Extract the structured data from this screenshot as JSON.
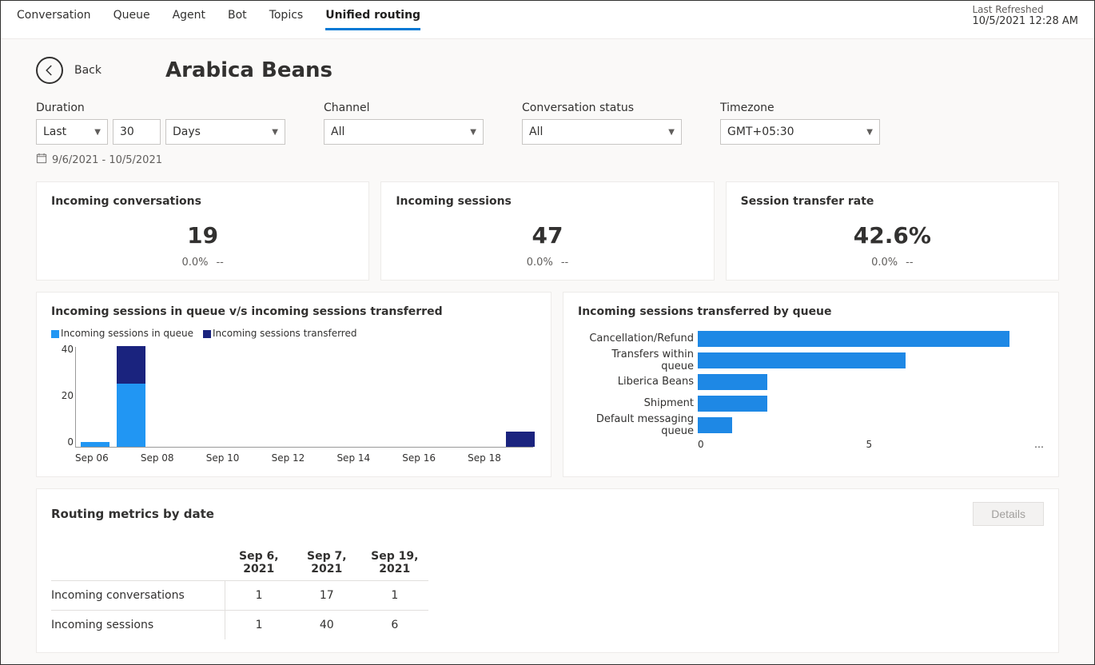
{
  "tabs": [
    "Conversation",
    "Queue",
    "Agent",
    "Bot",
    "Topics",
    "Unified routing"
  ],
  "active_tab": 5,
  "last_refreshed_label": "Last Refreshed",
  "last_refreshed_value": "10/5/2021 12:28 AM",
  "back_label": "Back",
  "page_title": "Arabica Beans",
  "filters": {
    "duration": {
      "label": "Duration",
      "rel": "Last",
      "num": "30",
      "unit": "Days"
    },
    "channel": {
      "label": "Channel",
      "value": "All"
    },
    "status": {
      "label": "Conversation status",
      "value": "All"
    },
    "timezone": {
      "label": "Timezone",
      "value": "GMT+05:30"
    }
  },
  "date_range": "9/6/2021 - 10/5/2021",
  "kpi": [
    {
      "title": "Incoming conversations",
      "value": "19",
      "pct": "0.0%",
      "trend": "--"
    },
    {
      "title": "Incoming sessions",
      "value": "47",
      "pct": "0.0%",
      "trend": "--"
    },
    {
      "title": "Session transfer rate",
      "value": "42.6%",
      "pct": "0.0%",
      "trend": "--"
    }
  ],
  "chart1": {
    "title": "Incoming sessions in queue v/s incoming sessions transferred",
    "legend": [
      {
        "label": "Incoming sessions in queue",
        "color": "#2196f3"
      },
      {
        "label": "Incoming sessions transferred",
        "color": "#1a237e"
      }
    ],
    "y_ticks": [
      "40",
      "20",
      "0"
    ],
    "y_max": 40,
    "x_labels": [
      "Sep 06",
      "Sep 08",
      "Sep 10",
      "Sep 12",
      "Sep 14",
      "Sep 16",
      "Sep 18"
    ],
    "series": [
      {
        "x_pct": 1,
        "in_queue": 2,
        "transferred": 0
      },
      {
        "x_pct": 9,
        "in_queue": 25,
        "transferred": 15
      },
      {
        "x_pct": 94,
        "in_queue": 0,
        "transferred": 6
      }
    ],
    "colors": {
      "in_queue": "#2196f3",
      "transferred": "#1a237e"
    }
  },
  "chart2": {
    "title": "Incoming sessions transferred by queue",
    "x_max": 10,
    "x_ticks": [
      "0",
      "5",
      "…"
    ],
    "color": "#1e88e5",
    "rows": [
      {
        "label": "Cancellation/Refund",
        "value": 9
      },
      {
        "label": "Transfers within queue",
        "value": 6
      },
      {
        "label": "Liberica Beans",
        "value": 2
      },
      {
        "label": "Shipment",
        "value": 2
      },
      {
        "label": "Default messaging queue",
        "value": 1
      }
    ]
  },
  "routing": {
    "title": "Routing metrics by date",
    "details_btn": "Details",
    "columns": [
      "",
      "Sep 6, 2021",
      "Sep 7, 2021",
      "Sep 19, 2021"
    ],
    "rows": [
      {
        "label": "Incoming conversations",
        "vals": [
          "1",
          "17",
          "1"
        ]
      },
      {
        "label": "Incoming sessions",
        "vals": [
          "1",
          "40",
          "6"
        ]
      }
    ]
  }
}
